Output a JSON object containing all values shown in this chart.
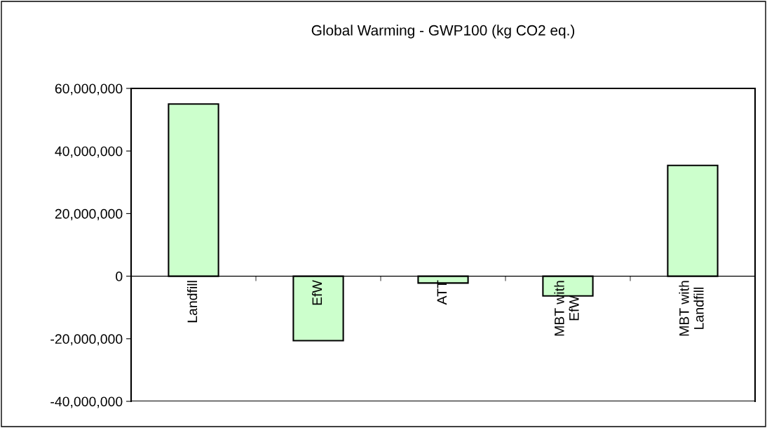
{
  "chart_data": {
    "type": "bar",
    "title": "Global Warming - GWP100 (kg CO2 eq.)",
    "categories": [
      "Landfill",
      "EfW",
      "ATT",
      "MBT with\nEfW",
      "MBT with\nLandfill"
    ],
    "values": [
      55000000,
      -20600000,
      -2200000,
      -6300000,
      35400000
    ],
    "color": "#ccffcc",
    "ylim": [
      -40000000,
      60000000
    ],
    "yticks": [
      {
        "value": -40000000,
        "label": "-40,000,000"
      },
      {
        "value": -20000000,
        "label": "-20,000,000"
      },
      {
        "value": 0,
        "label": "0"
      },
      {
        "value": 20000000,
        "label": "20,000,000"
      },
      {
        "value": 40000000,
        "label": "40,000,000"
      },
      {
        "value": 60000000,
        "label": "60,000,000"
      }
    ],
    "grid": false,
    "legend": false
  }
}
